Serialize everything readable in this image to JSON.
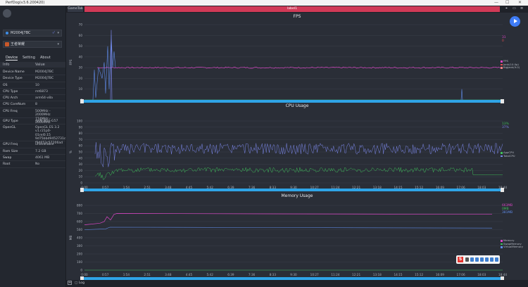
{
  "window": {
    "title": "PerfDog(v3.6.200420)"
  },
  "user": {
    "name": "",
    "email": ""
  },
  "device": {
    "name": "M2004J7BC"
  },
  "app": {
    "name": "王者荣耀"
  },
  "tabs": [
    "Device",
    "Setting",
    "About"
  ],
  "info_header": {
    "key": "Info",
    "value": "Value"
  },
  "info_rows": [
    {
      "k": "Device Name",
      "v": "M2004J7BC"
    },
    {
      "k": "Device Type",
      "v": "M2004J7BC"
    },
    {
      "k": "OS",
      "v": "10"
    },
    {
      "k": "CPU Type",
      "v": "mt6873"
    },
    {
      "k": "CPU Arch",
      "v": "arm64-v8a"
    },
    {
      "k": "CPU CoreNum",
      "v": "8"
    },
    {
      "k": "CPU Freq",
      "v": "500MHz - 2000MHz\n774MHz - 2600MHz"
    },
    {
      "k": "GPU Type",
      "v": "ARM Mali-G57"
    },
    {
      "k": "OpenGL",
      "v": "OpenGL ES 3.2\nv1.r21p0-01rel0.15\n9d75bbd9452731c\nf9d652c57206ad"
    },
    {
      "k": "GPU Freq",
      "v": "unavailable"
    },
    {
      "k": "Ram Size",
      "v": "7.2 GB"
    },
    {
      "k": "Swap",
      "v": "4061 MB"
    },
    {
      "k": "Root",
      "v": "No"
    }
  ],
  "topbar": {
    "game_tab": "GameTab",
    "label": "label1"
  },
  "time_ticks": [
    "0:00",
    "0:57",
    "1:54",
    "2:51",
    "3:48",
    "4:45",
    "5:42",
    "6:39",
    "7:36",
    "8:33",
    "9:30",
    "10:27",
    "11:24",
    "12:21",
    "13:18",
    "14:15",
    "15:12",
    "16:09",
    "17:06",
    "18:03",
    "18:44"
  ],
  "charts": [
    {
      "title": "FPS",
      "ylabel": "FPS",
      "yticks": [
        "70",
        "60",
        "50",
        "40",
        "30",
        "20",
        "10",
        "0"
      ],
      "current": [
        {
          "text": "31",
          "color": "#d946c4"
        },
        {
          "text": "0",
          "color": "#e05050"
        }
      ],
      "legend": [
        {
          "name": "FPS",
          "color": "#d946c4"
        },
        {
          "name": "Jank(10.0p)",
          "color": "#e05050"
        },
        {
          "name": "BigJank(9.0)",
          "color": "#f08080"
        }
      ]
    },
    {
      "title": "CPU Usage",
      "ylabel": "%",
      "yticks": [
        "100",
        "90",
        "80",
        "70",
        "60",
        "50",
        "40",
        "30",
        "20",
        "10",
        "0"
      ],
      "current": [
        {
          "text": "13%",
          "color": "#3fbf5a"
        },
        {
          "text": "37%",
          "color": "#7b86e8"
        }
      ],
      "legend": [
        {
          "name": "AppCPU",
          "color": "#3fbf5a"
        },
        {
          "name": "TotalCPU",
          "color": "#7b86e8"
        }
      ]
    },
    {
      "title": "Memory Usage",
      "ylabel": "MB",
      "yticks": [
        "800",
        "700",
        "600",
        "500",
        "400",
        "300",
        "200",
        "100",
        "0"
      ],
      "current": [
        {
          "text": "663MB",
          "color": "#d946c4"
        },
        {
          "text": "0MB",
          "color": "#3fbf5a"
        },
        {
          "text": "381MB",
          "color": "#5f8ae6"
        }
      ],
      "legend": [
        {
          "name": "Memory",
          "color": "#d946c4"
        },
        {
          "name": "SwapMemory",
          "color": "#3fbf5a"
        },
        {
          "name": "VirtualMemory",
          "color": "#5f8ae6"
        }
      ]
    }
  ],
  "bottom": {
    "log_label": "Log"
  },
  "colors": {
    "accent": "#2fa4e7",
    "label_bar": "#d13a57",
    "play": "#3f7cf6"
  }
}
